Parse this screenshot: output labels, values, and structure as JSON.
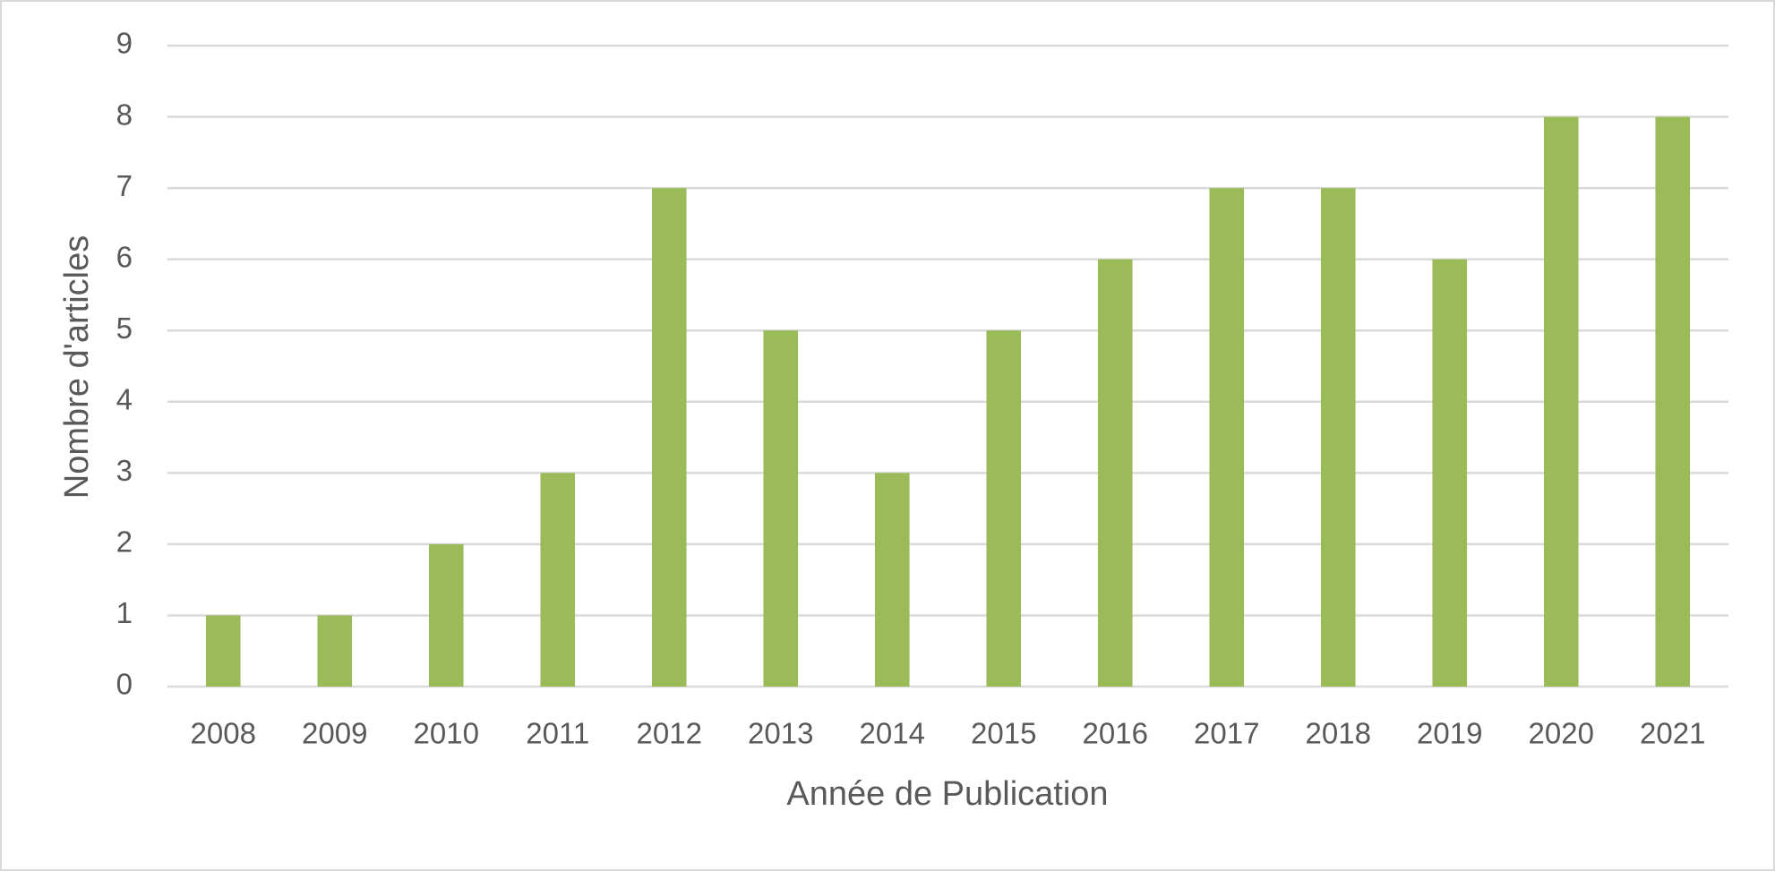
{
  "chart_data": {
    "type": "bar",
    "x_label": "Année de Publication",
    "y_label": "Nombre d'articles",
    "categories": [
      "2008",
      "2009",
      "2010",
      "2011",
      "2012",
      "2013",
      "2014",
      "2015",
      "2016",
      "2017",
      "2018",
      "2019",
      "2020",
      "2021"
    ],
    "values": [
      1,
      1,
      2,
      3,
      7,
      5,
      3,
      5,
      6,
      7,
      7,
      6,
      8,
      8
    ],
    "color": "#9bbb59",
    "ylim": [
      0,
      9
    ],
    "yticks": [
      0,
      1,
      2,
      3,
      4,
      5,
      6,
      7,
      8,
      9
    ],
    "grid": true
  }
}
